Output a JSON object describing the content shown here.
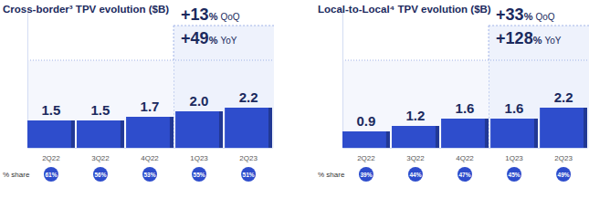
{
  "chart_data": [
    {
      "type": "bar",
      "title": "Cross-border³ TPV evolution ($B)",
      "categories": [
        "2Q22",
        "3Q22",
        "4Q22",
        "1Q23",
        "2Q23"
      ],
      "values": [
        1.5,
        1.5,
        1.7,
        2.0,
        2.2
      ],
      "value_labels": [
        "1.5",
        "1.5",
        "1.7",
        "2.0",
        "2.2"
      ],
      "color": "#2e4dcc",
      "ylim": [
        0,
        7.6
      ],
      "data_labels": true,
      "tick_labels": "x",
      "share_label": "% share",
      "share_values": [
        61,
        56,
        53,
        55,
        51
      ],
      "share_value_labels": [
        "61%",
        "56%",
        "53%",
        "55%",
        "51%"
      ],
      "annotations": [
        {
          "main": "+13",
          "unit": "%",
          "period": "QoQ"
        },
        {
          "main": "+49",
          "unit": "%",
          "period": "YoY"
        }
      ]
    },
    {
      "type": "bar",
      "title": "Local-to-Local⁴ TPV evolution ($B)",
      "categories": [
        "2Q22",
        "3Q22",
        "4Q22",
        "1Q23",
        "2Q23"
      ],
      "values": [
        0.9,
        1.2,
        1.6,
        1.6,
        2.2
      ],
      "value_labels": [
        "0.9",
        "1.2",
        "1.6",
        "1.6",
        "2.2"
      ],
      "color": "#2e4dcc",
      "ylim": [
        0,
        7.6
      ],
      "data_labels": true,
      "tick_labels": "x",
      "share_label": "% share",
      "share_values": [
        39,
        44,
        47,
        45,
        49
      ],
      "share_value_labels": [
        "39%",
        "44%",
        "47%",
        "45%",
        "49%"
      ],
      "annotations": [
        {
          "main": "+33",
          "unit": "%",
          "period": "QoQ"
        },
        {
          "main": "+128",
          "unit": "%",
          "period": "YoY"
        }
      ]
    }
  ]
}
